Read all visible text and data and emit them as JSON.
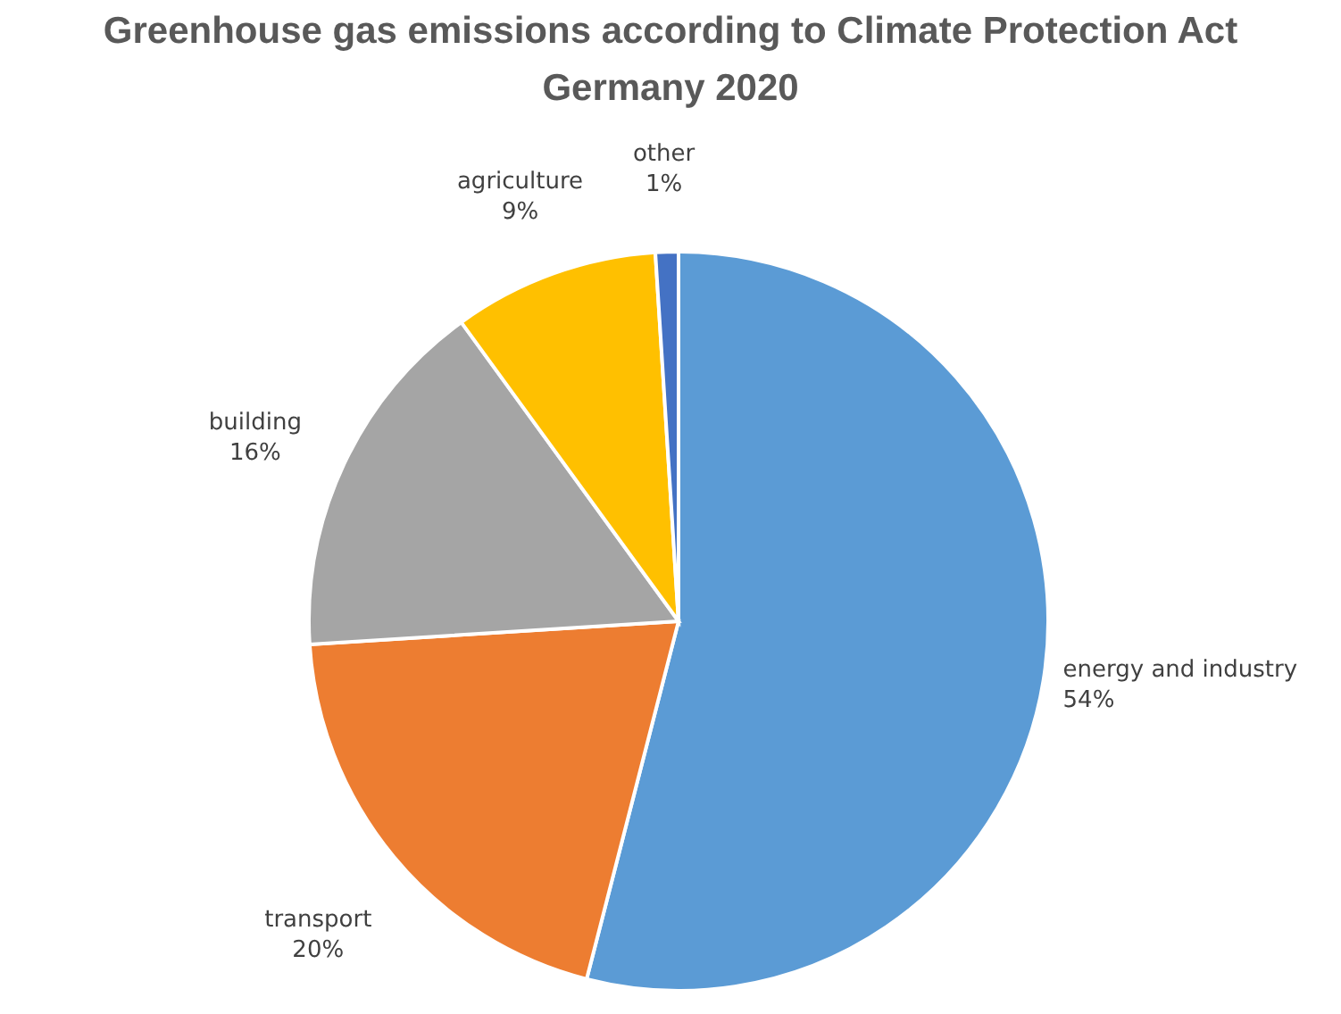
{
  "chart_data": {
    "type": "pie",
    "title": "Greenhouse gas emissions according to Climate Protection Act\nGermany  2020",
    "categories": [
      "energy and industry",
      "transport",
      "building",
      "agriculture",
      "other"
    ],
    "values": [
      54,
      20,
      16,
      9,
      1
    ],
    "colors": [
      "#5b9bd5",
      "#ed7d31",
      "#a5a5a5",
      "#ffc000",
      "#4472c4"
    ],
    "value_labels": [
      "54%",
      "20%",
      "16%",
      "9%",
      "1%"
    ],
    "legend": false
  }
}
